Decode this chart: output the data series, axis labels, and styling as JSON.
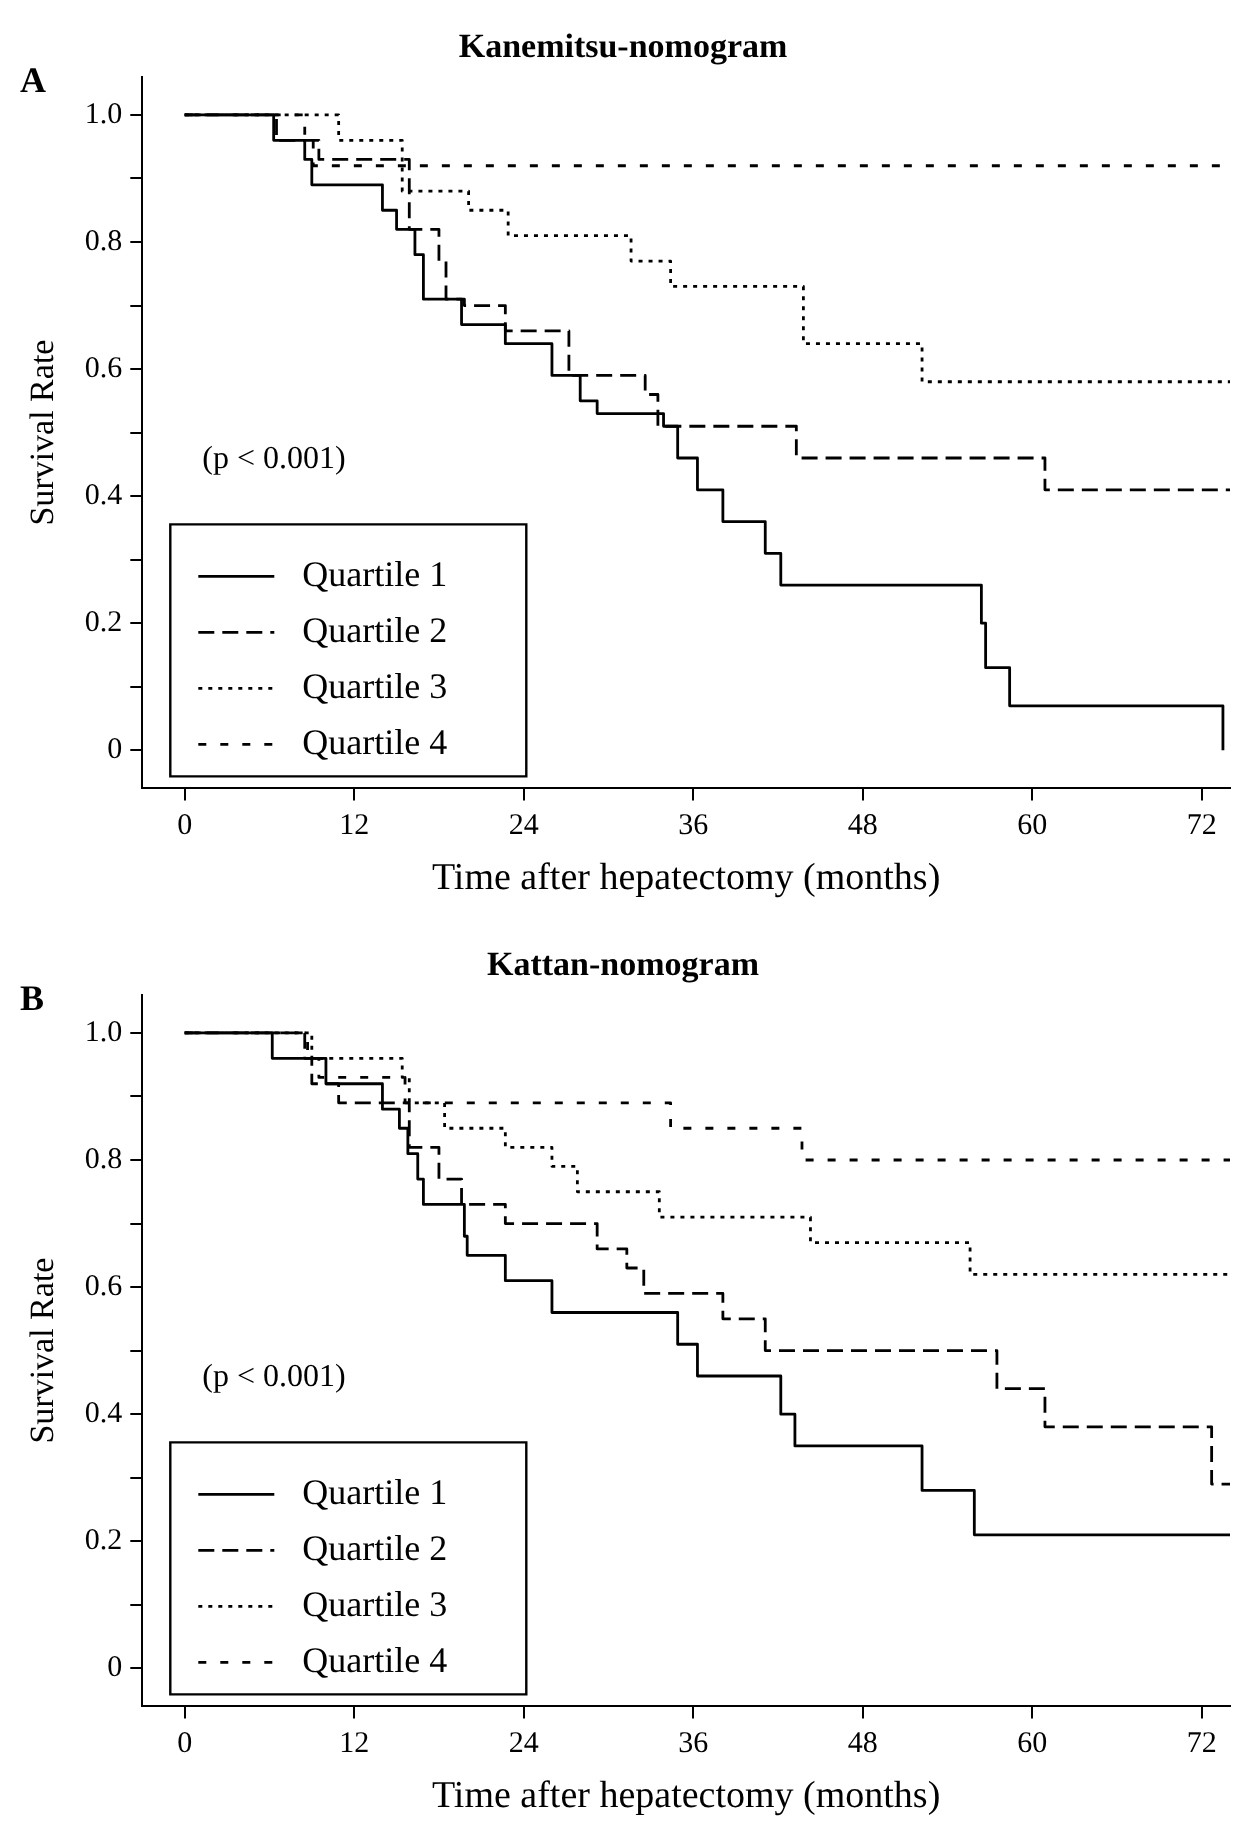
{
  "chart_data": [
    {
      "type": "step",
      "title": "Kanemitsu-nomogram",
      "xlabel": "Time after hepatectomy (months)",
      "ylabel": "Survival Rate",
      "annotations": [
        "A",
        "(p < 0.001)"
      ],
      "xlim": [
        -3,
        74
      ],
      "ylim": [
        -0.06,
        1.06
      ],
      "xticks": [
        0,
        12,
        24,
        36,
        48,
        60,
        72
      ],
      "yticks": [
        0,
        {
          "value": 0.1,
          "label": null
        },
        0.2,
        {
          "value": 0.3,
          "label": null
        },
        0.4,
        {
          "value": 0.5,
          "label": null
        },
        0.6,
        {
          "value": 0.7,
          "label": null
        },
        0.8,
        {
          "value": 0.9,
          "label": null
        },
        {
          "value": 1.0,
          "label": "1.0"
        }
      ],
      "legend": "bottom left",
      "series": [
        {
          "name": "Quartile 1",
          "color": "#000000",
          "line_style": "solid",
          "x": [
            0,
            6.3,
            8.5,
            9,
            14,
            15,
            16.3,
            16.9,
            19.6,
            22.7,
            26,
            28,
            29.2,
            33.9,
            34.9,
            36.3,
            38.1,
            41.1,
            42.2,
            56.4,
            56.7,
            58.4,
            73.5
          ],
          "values": [
            1,
            0.96,
            0.93,
            0.89,
            0.85,
            0.82,
            0.78,
            0.71,
            0.67,
            0.64,
            0.59,
            0.55,
            0.53,
            0.51,
            0.46,
            0.41,
            0.36,
            0.31,
            0.26,
            0.2,
            0.13,
            0.07,
            0
          ]
        },
        {
          "name": "Quartile 2",
          "color": "#000000",
          "line_style": "dashed",
          "x": [
            0,
            6.5,
            9.5,
            15.9,
            18,
            18.5,
            19.8,
            22.7,
            27.2,
            32.6,
            33.5,
            43.3,
            60.9,
            74
          ],
          "values": [
            1,
            0.96,
            0.93,
            0.82,
            0.77,
            0.71,
            0.7,
            0.66,
            0.59,
            0.56,
            0.51,
            0.46,
            0.41,
            0.41
          ]
        },
        {
          "name": "Quartile 3",
          "color": "#000000",
          "line_style": "dotted",
          "x": [
            0,
            10.9,
            15.4,
            20.1,
            22.9,
            31.6,
            34.4,
            43.8,
            52.2,
            74
          ],
          "values": [
            1,
            0.96,
            0.88,
            0.85,
            0.81,
            0.77,
            0.73,
            0.64,
            0.58,
            0.58
          ]
        },
        {
          "name": "Quartile 4",
          "color": "#000000",
          "line_style": "dashed",
          "x": [
            0,
            8.5,
            9.1,
            74
          ],
          "values": [
            1,
            0.96,
            0.92,
            0.92
          ]
        }
      ]
    },
    {
      "type": "step",
      "title": "Kattan-nomogram",
      "xlabel": "Time after hepatectomy (months)",
      "ylabel": "Survival Rate",
      "annotations": [
        "B",
        "(p < 0.001)"
      ],
      "xlim": [
        -3,
        74
      ],
      "ylim": [
        -0.06,
        1.06
      ],
      "xticks": [
        0,
        12,
        24,
        36,
        48,
        60,
        72
      ],
      "yticks": [
        0,
        {
          "value": 0.1,
          "label": null
        },
        0.2,
        {
          "value": 0.3,
          "label": null
        },
        0.4,
        {
          "value": 0.5,
          "label": null
        },
        0.6,
        {
          "value": 0.7,
          "label": null
        },
        0.8,
        {
          "value": 0.9,
          "label": null
        },
        {
          "value": 1.0,
          "label": "1.0"
        }
      ],
      "legend": "bottom left",
      "series": [
        {
          "name": "Quartile 1",
          "color": "#000000",
          "line_style": "solid",
          "x": [
            0,
            6.2,
            10,
            14,
            15.2,
            15.8,
            16.5,
            16.9,
            19.8,
            20,
            22.7,
            26,
            34.9,
            36.3,
            42.2,
            43.2,
            52.2,
            55.9,
            74
          ],
          "values": [
            1,
            0.96,
            0.92,
            0.88,
            0.85,
            0.81,
            0.77,
            0.73,
            0.68,
            0.65,
            0.61,
            0.56,
            0.51,
            0.46,
            0.4,
            0.35,
            0.28,
            0.21,
            0.21
          ]
        },
        {
          "name": "Quartile 2",
          "color": "#000000",
          "line_style": "dashed",
          "x": [
            0,
            8.5,
            9,
            10.9,
            15.9,
            18,
            19.6,
            22.7,
            29.2,
            31.3,
            32.5,
            38.1,
            41.1,
            57.5,
            60.9,
            72.7,
            74
          ],
          "values": [
            1,
            0.96,
            0.92,
            0.89,
            0.82,
            0.77,
            0.73,
            0.7,
            0.66,
            0.63,
            0.59,
            0.55,
            0.5,
            0.44,
            0.38,
            0.29,
            0.29
          ]
        },
        {
          "name": "Quartile 3",
          "color": "#000000",
          "line_style": "dotted",
          "x": [
            0,
            9,
            15.4,
            15.9,
            18.4,
            22.7,
            26,
            27.8,
            33.6,
            44.3,
            55.6,
            74
          ],
          "values": [
            1,
            0.96,
            0.93,
            0.89,
            0.85,
            0.82,
            0.79,
            0.75,
            0.71,
            0.67,
            0.62,
            0.62
          ]
        },
        {
          "name": "Quartile 4",
          "color": "#000000",
          "line_style": "dashed",
          "x": [
            0,
            8.7,
            9.5,
            15.6,
            34.4,
            43.7,
            74
          ],
          "values": [
            1,
            0.96,
            0.93,
            0.89,
            0.85,
            0.8,
            0.8
          ]
        }
      ]
    }
  ]
}
